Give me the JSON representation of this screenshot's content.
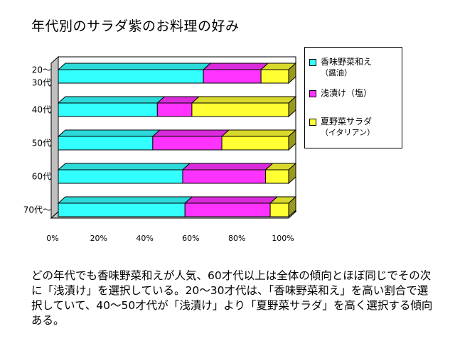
{
  "title": "年代別のサラダ紫のお料理の好み",
  "chart_data": {
    "type": "bar",
    "orientation": "horizontal",
    "stacked": "percent",
    "style": "3d",
    "categories": [
      "20～30代",
      "40代",
      "50代",
      "60代",
      "70代～"
    ],
    "category_lines": [
      [
        "20～",
        "30代"
      ],
      [
        "40代"
      ],
      [
        "50代"
      ],
      [
        "60代"
      ],
      [
        "70代～"
      ]
    ],
    "series": [
      {
        "name": "香味野菜和え（醤油）",
        "name_lines": [
          "香味野菜和え",
          "（醤油）"
        ],
        "color": "#33FFFF",
        "values": [
          63,
          43,
          41,
          54,
          55
        ]
      },
      {
        "name": "浅漬け（塩）",
        "name_lines": [
          "浅漬け（塩）"
        ],
        "color": "#FF33FF",
        "values": [
          25,
          15,
          30,
          36,
          37
        ]
      },
      {
        "name": "夏野菜サラダ（イタリアン）",
        "name_lines": [
          "夏野菜サラダ",
          "（イタリアン）"
        ],
        "color": "#FFFF33",
        "values": [
          12,
          42,
          29,
          10,
          8
        ]
      }
    ],
    "x_ticks": [
      "0%",
      "20%",
      "40%",
      "60%",
      "80%",
      "100%"
    ],
    "xlim": [
      0,
      100
    ],
    "legend_position": "right",
    "grid": false
  },
  "description": "どの年代でも香味野菜和えが人気、60才代以上は全体の傾向とほぼ同じでその次に「浅漬け」を選択している。20～30才代は、「香味野菜和え」を高い割合で選択していて、40～50才代が「浅漬け」より「夏野菜サラダ」を高く選択する傾向ある。"
}
